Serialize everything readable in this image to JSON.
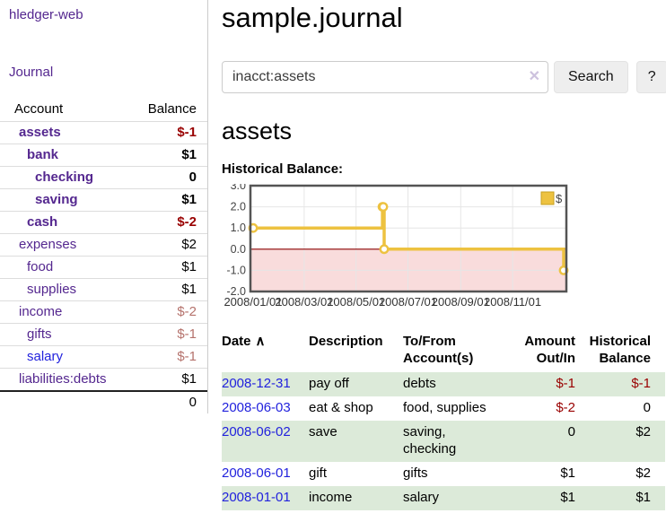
{
  "app": {
    "brand": "hledger-web",
    "nav_journal": "Journal"
  },
  "colors": {
    "link_purple": "#54278f",
    "link_blue": "#2222dd",
    "negative_red": "#990000",
    "negative_muted": "#b5726c",
    "row_green": "#dcead9"
  },
  "sidebar": {
    "header": {
      "account": "Account",
      "balance": "Balance"
    },
    "accounts": [
      {
        "name": "assets",
        "balance": "$-1",
        "depth": 1,
        "bold": true,
        "balance_style": "neg"
      },
      {
        "name": "bank",
        "balance": "$1",
        "depth": 2,
        "bold": true,
        "balance_style": "pos"
      },
      {
        "name": "checking",
        "balance": "0",
        "depth": 3,
        "bold": true,
        "balance_style": "pos"
      },
      {
        "name": "saving",
        "balance": "$1",
        "depth": 3,
        "bold": true,
        "balance_style": "pos"
      },
      {
        "name": "cash",
        "balance": "$-2",
        "depth": 2,
        "bold": true,
        "balance_style": "neg"
      },
      {
        "name": "expenses",
        "balance": "$2",
        "depth": 1,
        "bold": false,
        "balance_style": "pos"
      },
      {
        "name": "food",
        "balance": "$1",
        "depth": 2,
        "bold": false,
        "balance_style": "pos"
      },
      {
        "name": "supplies",
        "balance": "$1",
        "depth": 2,
        "bold": false,
        "balance_style": "pos"
      },
      {
        "name": "income",
        "balance": "$-2",
        "depth": 1,
        "bold": false,
        "balance_style": "negmuted"
      },
      {
        "name": "gifts",
        "balance": "$-1",
        "depth": 2,
        "bold": false,
        "balance_style": "negmuted"
      },
      {
        "name": "salary",
        "balance": "$-1",
        "depth": 2,
        "bold": false,
        "balance_style": "negmuted",
        "link_style": "blue"
      },
      {
        "name": "liabilities:debts",
        "balance": "$1",
        "depth": 1,
        "bold": false,
        "balance_style": "pos"
      }
    ],
    "total": "0"
  },
  "header": {
    "title": "sample.journal"
  },
  "search": {
    "value": "inacct:assets",
    "clear_icon": "✕",
    "button": "Search",
    "help_button": "?"
  },
  "account_page": {
    "heading": "assets",
    "chart_label": "Historical Balance:"
  },
  "chart_data": {
    "type": "line",
    "step": true,
    "title": "Historical Balance",
    "xrange": [
      "2008-01-01",
      "2008-12-31"
    ],
    "ylim": [
      -2,
      3
    ],
    "yticks": [
      3.0,
      2.0,
      1.0,
      0.0,
      -1.0,
      -2.0
    ],
    "xtick_labels": [
      "2008/01/01",
      "2008/03/01",
      "2008/05/01",
      "2008/07/01",
      "2008/09/01",
      "2008/11/01"
    ],
    "grid": true,
    "legend_position": "top-right",
    "series": [
      {
        "name": "$",
        "color": "#edc240",
        "marker_fill": "#ffffff",
        "points": [
          [
            "2008-01-01",
            1
          ],
          [
            "2008-06-01",
            2
          ],
          [
            "2008-06-02",
            2
          ],
          [
            "2008-06-03",
            0
          ],
          [
            "2008-12-31",
            -1
          ]
        ]
      }
    ],
    "negative_fill": "#f9dcdc",
    "zero_line_color": "#8b0000",
    "grid_color": "#e6e6e6",
    "border_color": "#545454",
    "tick_color": "#444444"
  },
  "register": {
    "columns": {
      "date": "Date",
      "description": "Description",
      "accounts": "To/From\nAccount(s)",
      "amount": "Amount\nOut/In",
      "balance": "Historical\nBalance"
    },
    "sort_icon": "∧",
    "rows": [
      {
        "date": "2008-12-31",
        "description": "pay off",
        "accounts": "debts",
        "amount": "$-1",
        "amount_neg": true,
        "balance": "$-1",
        "balance_neg": true
      },
      {
        "date": "2008-06-03",
        "description": "eat & shop",
        "accounts": "food, supplies",
        "amount": "$-2",
        "amount_neg": true,
        "balance": "0",
        "balance_neg": false
      },
      {
        "date": "2008-06-02",
        "description": "save",
        "accounts": "saving, checking",
        "amount": "0",
        "amount_neg": false,
        "balance": "$2",
        "balance_neg": false
      },
      {
        "date": "2008-06-01",
        "description": "gift",
        "accounts": "gifts",
        "amount": "$1",
        "amount_neg": false,
        "balance": "$2",
        "balance_neg": false
      },
      {
        "date": "2008-01-01",
        "description": "income",
        "accounts": "salary",
        "amount": "$1",
        "amount_neg": false,
        "balance": "$1",
        "balance_neg": false
      }
    ]
  }
}
